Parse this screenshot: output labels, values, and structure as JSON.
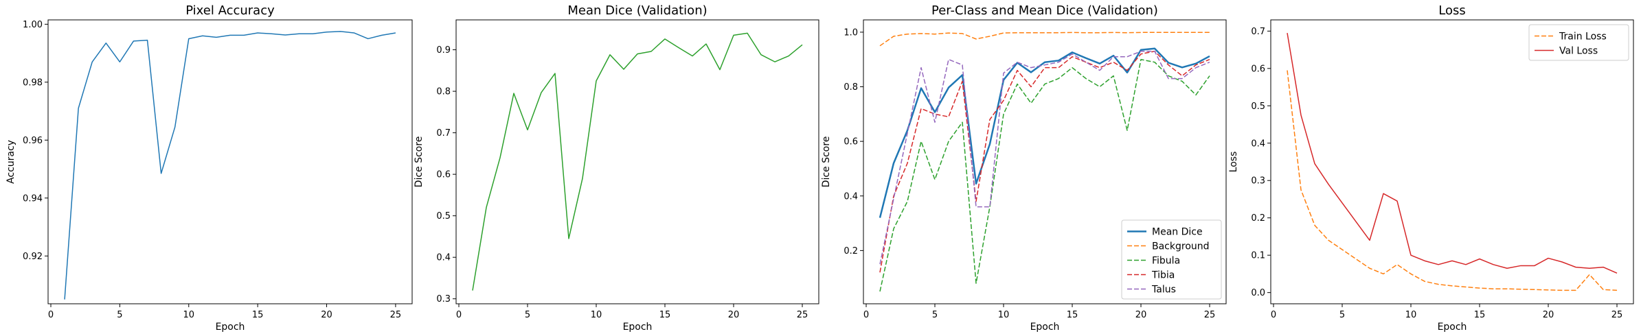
{
  "figure": {
    "background": "#ffffff"
  },
  "chart_data": [
    {
      "type": "line",
      "title": "Pixel Accuracy",
      "xlabel": "Epoch",
      "ylabel": "Accuracy",
      "x": [
        1,
        2,
        3,
        4,
        5,
        6,
        7,
        8,
        9,
        10,
        11,
        12,
        13,
        14,
        15,
        16,
        17,
        18,
        19,
        20,
        21,
        22,
        23,
        24,
        25
      ],
      "xlim": [
        -0.2,
        26.2
      ],
      "ylim": [
        0.9035,
        1.0015
      ],
      "xticks": [
        0,
        5,
        10,
        15,
        20,
        25
      ],
      "xtick_labels": [
        "0",
        "5",
        "10",
        "15",
        "20",
        "25"
      ],
      "yticks": [
        0.92,
        0.94,
        0.96,
        0.98,
        1.0
      ],
      "ytick_labels": [
        "0.92",
        "0.94",
        "0.96",
        "0.98",
        "1.00"
      ],
      "grid": false,
      "legend": null,
      "series": [
        {
          "color": "#1f77b4",
          "dash": "solid",
          "width": 1.5,
          "values": [
            0.905,
            0.971,
            0.987,
            0.9935,
            0.987,
            0.9942,
            0.9945,
            0.9485,
            0.9645,
            0.995,
            0.996,
            0.9955,
            0.9962,
            0.9962,
            0.997,
            0.9967,
            0.9963,
            0.9967,
            0.9967,
            0.9973,
            0.9975,
            0.997,
            0.995,
            0.9962,
            0.997
          ]
        }
      ]
    },
    {
      "type": "line",
      "title": "Mean Dice (Validation)",
      "xlabel": "Epoch",
      "ylabel": "Dice Score",
      "x": [
        1,
        2,
        3,
        4,
        5,
        6,
        7,
        8,
        9,
        10,
        11,
        12,
        13,
        14,
        15,
        16,
        17,
        18,
        19,
        20,
        21,
        22,
        23,
        24,
        25
      ],
      "xlim": [
        -0.2,
        26.2
      ],
      "ylim": [
        0.288,
        0.972
      ],
      "xticks": [
        0,
        5,
        10,
        15,
        20,
        25
      ],
      "xtick_labels": [
        "0",
        "5",
        "10",
        "15",
        "20",
        "25"
      ],
      "yticks": [
        0.3,
        0.4,
        0.5,
        0.6,
        0.7,
        0.8,
        0.9
      ],
      "ytick_labels": [
        "0.3",
        "0.4",
        "0.5",
        "0.6",
        "0.7",
        "0.8",
        "0.9"
      ],
      "grid": false,
      "legend": null,
      "series": [
        {
          "color": "#2ca02c",
          "dash": "solid",
          "width": 1.5,
          "values": [
            0.32,
            0.52,
            0.64,
            0.795,
            0.707,
            0.797,
            0.843,
            0.445,
            0.59,
            0.825,
            0.888,
            0.853,
            0.89,
            0.896,
            0.926,
            0.905,
            0.885,
            0.914,
            0.852,
            0.935,
            0.94,
            0.888,
            0.871,
            0.885,
            0.912
          ]
        }
      ]
    },
    {
      "type": "line",
      "title": "Per-Class and Mean Dice (Validation)",
      "xlabel": "Epoch",
      "ylabel": "Dice Score",
      "x": [
        1,
        2,
        3,
        4,
        5,
        6,
        7,
        8,
        9,
        10,
        11,
        12,
        13,
        14,
        15,
        16,
        17,
        18,
        19,
        20,
        21,
        22,
        23,
        24,
        25
      ],
      "xlim": [
        -0.2,
        26.2
      ],
      "ylim": [
        0.005,
        1.045
      ],
      "xticks": [
        0,
        5,
        10,
        15,
        20,
        25
      ],
      "xtick_labels": [
        "0",
        "5",
        "10",
        "15",
        "20",
        "25"
      ],
      "yticks": [
        0.2,
        0.4,
        0.6,
        0.8,
        1.0
      ],
      "ytick_labels": [
        "0.2",
        "0.4",
        "0.6",
        "0.8",
        "1.0"
      ],
      "grid": false,
      "legend": "lower right",
      "series": [
        {
          "name": "Mean Dice",
          "color": "#1f77b4",
          "dash": "solid",
          "width": 2.5,
          "values": [
            0.32,
            0.52,
            0.64,
            0.795,
            0.707,
            0.797,
            0.843,
            0.445,
            0.59,
            0.825,
            0.888,
            0.853,
            0.89,
            0.896,
            0.926,
            0.905,
            0.885,
            0.914,
            0.852,
            0.935,
            0.94,
            0.888,
            0.871,
            0.885,
            0.912
          ]
        },
        {
          "name": "Background",
          "color": "#ff7f0e",
          "dash": "dashed",
          "width": 1.5,
          "values": [
            0.95,
            0.985,
            0.993,
            0.995,
            0.993,
            0.997,
            0.995,
            0.975,
            0.985,
            0.997,
            0.998,
            0.998,
            0.998,
            0.998,
            0.999,
            0.998,
            0.998,
            0.999,
            0.998,
            0.999,
            0.999,
            0.999,
            0.999,
            0.999,
            0.999
          ]
        },
        {
          "name": "Fibula",
          "color": "#2ca02c",
          "dash": "dashed",
          "width": 1.5,
          "values": [
            0.05,
            0.28,
            0.38,
            0.6,
            0.46,
            0.6,
            0.67,
            0.08,
            0.36,
            0.7,
            0.81,
            0.74,
            0.81,
            0.83,
            0.87,
            0.83,
            0.8,
            0.84,
            0.64,
            0.9,
            0.89,
            0.84,
            0.82,
            0.77,
            0.84
          ]
        },
        {
          "name": "Tibia",
          "color": "#d62728",
          "dash": "dashed",
          "width": 1.5,
          "values": [
            0.12,
            0.4,
            0.52,
            0.72,
            0.7,
            0.69,
            0.82,
            0.38,
            0.68,
            0.75,
            0.86,
            0.8,
            0.87,
            0.87,
            0.91,
            0.89,
            0.87,
            0.89,
            0.86,
            0.92,
            0.93,
            0.88,
            0.84,
            0.88,
            0.9
          ]
        },
        {
          "name": "Talus",
          "color": "#9467bd",
          "dash": "dashed",
          "width": 1.5,
          "values": [
            0.15,
            0.39,
            0.63,
            0.87,
            0.67,
            0.9,
            0.88,
            0.36,
            0.36,
            0.85,
            0.89,
            0.87,
            0.88,
            0.89,
            0.92,
            0.89,
            0.86,
            0.91,
            0.91,
            0.93,
            0.93,
            0.83,
            0.83,
            0.87,
            0.89
          ]
        }
      ]
    },
    {
      "type": "line",
      "title": "Loss",
      "xlabel": "Epoch",
      "ylabel": "Loss",
      "x": [
        1,
        2,
        3,
        4,
        5,
        6,
        7,
        8,
        9,
        10,
        11,
        12,
        13,
        14,
        15,
        16,
        17,
        18,
        19,
        20,
        21,
        22,
        23,
        24,
        25
      ],
      "xlim": [
        -0.2,
        26.2
      ],
      "ylim": [
        -0.03,
        0.73
      ],
      "xticks": [
        0,
        5,
        10,
        15,
        20,
        25
      ],
      "xtick_labels": [
        "0",
        "5",
        "10",
        "15",
        "20",
        "25"
      ],
      "yticks": [
        0.0,
        0.1,
        0.2,
        0.3,
        0.4,
        0.5,
        0.6,
        0.7
      ],
      "ytick_labels": [
        "0.0",
        "0.1",
        "0.2",
        "0.3",
        "0.4",
        "0.5",
        "0.6",
        "0.7"
      ],
      "grid": false,
      "legend": "upper right",
      "series": [
        {
          "name": "Train Loss",
          "color": "#ff7f0e",
          "dash": "dashed",
          "width": 1.5,
          "values": [
            0.595,
            0.275,
            0.18,
            0.14,
            0.115,
            0.09,
            0.065,
            0.05,
            0.075,
            0.05,
            0.03,
            0.022,
            0.018,
            0.015,
            0.012,
            0.01,
            0.01,
            0.009,
            0.008,
            0.007,
            0.006,
            0.006,
            0.048,
            0.008,
            0.006
          ]
        },
        {
          "name": "Val Loss",
          "color": "#d62728",
          "dash": "solid",
          "width": 1.5,
          "values": [
            0.695,
            0.475,
            0.345,
            0.29,
            0.24,
            0.19,
            0.14,
            0.265,
            0.245,
            0.1,
            0.085,
            0.075,
            0.085,
            0.075,
            0.09,
            0.075,
            0.065,
            0.072,
            0.072,
            0.092,
            0.082,
            0.068,
            0.065,
            0.068,
            0.052
          ]
        }
      ]
    }
  ]
}
